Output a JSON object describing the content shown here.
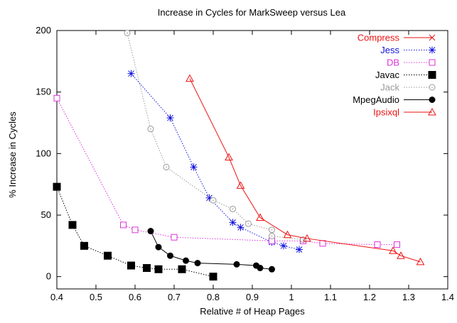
{
  "chart_data": {
    "type": "line",
    "title": "Increase in Cycles for MarkSweep versus Lea",
    "xlabel": "Relative # of Heap Pages",
    "ylabel": "% Increase in Cycles",
    "xlim": [
      0.4,
      1.4
    ],
    "ylim": [
      -10,
      200
    ],
    "xticks": [
      "0.4",
      "0.5",
      "0.6",
      "0.7",
      "0.8",
      "0.9",
      "1",
      "1.1",
      "1.2",
      "1.3",
      "1.4"
    ],
    "yticks": [
      "0",
      "50",
      "100",
      "150",
      "200"
    ],
    "grid": false,
    "legend": "top-right",
    "series": [
      {
        "name": "Compress",
        "color": "#ee1111",
        "dash": "solid",
        "marker": "x",
        "x": [],
        "y": []
      },
      {
        "name": "Jess",
        "color": "#1111dd",
        "dash": "dotted",
        "marker": "star",
        "x": [
          0.59,
          0.69,
          0.75,
          0.79,
          0.85,
          0.87,
          0.95,
          0.98,
          1.02
        ],
        "y": [
          165,
          129,
          89,
          64,
          44,
          40,
          28,
          25,
          22
        ]
      },
      {
        "name": "DB",
        "color": "#dd33dd",
        "dash": "dotted",
        "marker": "square-open",
        "x": [
          0.4,
          0.57,
          0.6,
          0.7,
          0.95,
          1.03,
          1.08,
          1.22,
          1.27
        ],
        "y": [
          145,
          42,
          38,
          32,
          29,
          29,
          27,
          26,
          26
        ]
      },
      {
        "name": "Javac",
        "color": "#000000",
        "dash": "dotted",
        "marker": "square-filled",
        "x": [
          0.4,
          0.44,
          0.47,
          0.53,
          0.59,
          0.63,
          0.66,
          0.72,
          0.8
        ],
        "y": [
          73,
          42,
          25,
          17,
          9,
          7,
          6,
          6,
          0
        ]
      },
      {
        "name": "Jack",
        "color": "#999999",
        "dash": "dotted",
        "marker": "circle-dot",
        "x": [
          0.58,
          0.64,
          0.68,
          0.8,
          0.85,
          0.89,
          0.95,
          0.95,
          1.03
        ],
        "y": [
          198,
          120,
          89,
          62,
          55,
          43,
          38,
          33,
          30
        ]
      },
      {
        "name": "MpegAudio",
        "color": "#000000",
        "dash": "solid",
        "marker": "circle-filled",
        "x": [
          0.64,
          0.66,
          0.69,
          0.73,
          0.76,
          0.86,
          0.91,
          0.92,
          0.95
        ],
        "y": [
          37,
          24,
          17,
          13,
          11,
          10,
          9,
          7,
          6
        ]
      },
      {
        "name": "Ipsixql",
        "color": "#ee1111",
        "dash": "solid",
        "marker": "triangle",
        "x": [
          0.74,
          0.84,
          0.87,
          0.92,
          0.99,
          1.04,
          1.26,
          1.28,
          1.33
        ],
        "y": [
          161,
          97,
          74,
          48,
          34,
          31,
          21,
          17,
          12
        ]
      }
    ]
  }
}
